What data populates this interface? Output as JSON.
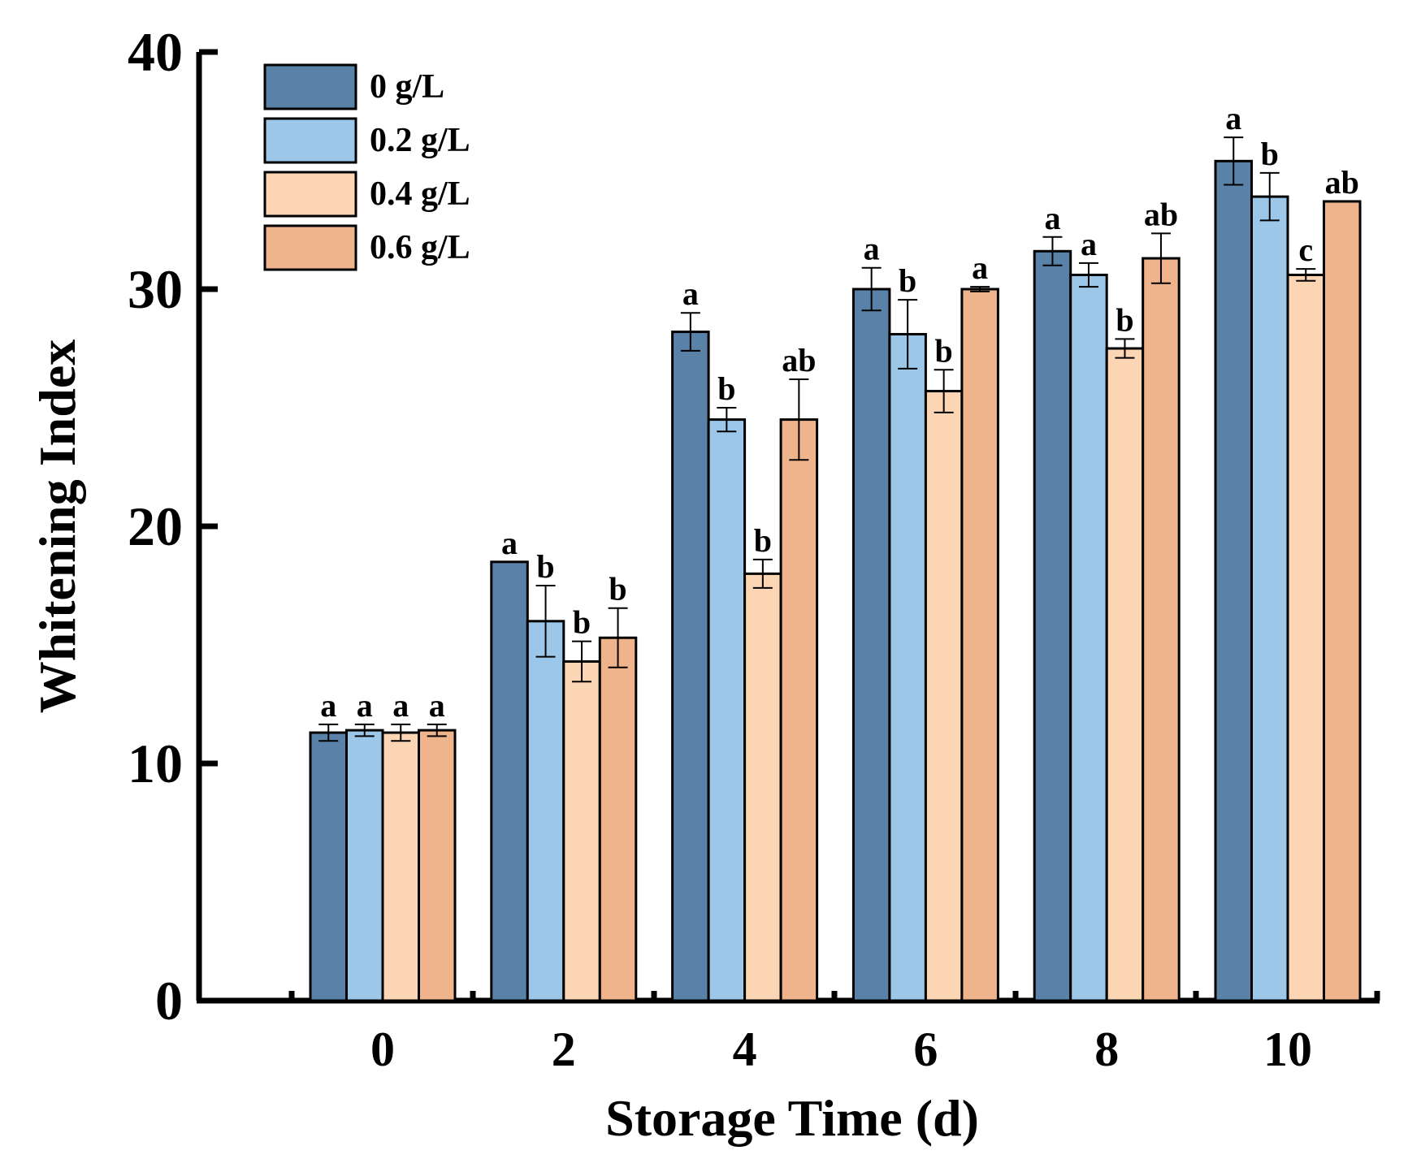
{
  "chart_data": {
    "type": "bar",
    "title": "",
    "xlabel": "Storage Time (d)",
    "ylabel": "Whitening Index",
    "ylim": [
      0,
      40
    ],
    "yticks": [
      0,
      10,
      20,
      30,
      40
    ],
    "categories": [
      "0",
      "2",
      "4",
      "6",
      "8",
      "10"
    ],
    "legend_position": "top-left",
    "series": [
      {
        "name": "0 g/L",
        "color": "#5a82a8",
        "values": [
          11.3,
          18.5,
          28.2,
          30.0,
          31.6,
          35.4
        ],
        "errors": [
          0.35,
          0.0,
          0.8,
          0.9,
          0.6,
          1.0
        ],
        "significance": [
          "a",
          "a",
          "a",
          "a",
          "a",
          "a"
        ]
      },
      {
        "name": "0.2 g/L",
        "color": "#9cc7e8",
        "values": [
          11.4,
          16.0,
          24.5,
          28.1,
          30.6,
          33.9
        ],
        "errors": [
          0.25,
          1.5,
          0.5,
          1.45,
          0.5,
          1.0
        ],
        "significance": [
          "a",
          "b",
          "b",
          "b",
          "a",
          "b"
        ]
      },
      {
        "name": "0.4 g/L",
        "color": "#fcd5b4",
        "values": [
          11.3,
          14.3,
          18.0,
          25.7,
          27.5,
          30.6
        ],
        "errors": [
          0.35,
          0.85,
          0.6,
          0.9,
          0.4,
          0.25
        ],
        "significance": [
          "a",
          "b",
          "b",
          "b",
          "b",
          "c"
        ]
      },
      {
        "name": "0.6 g/L",
        "color": "#f0b48c",
        "values": [
          11.4,
          15.3,
          24.5,
          30.0,
          31.3,
          33.7
        ],
        "errors": [
          0.25,
          1.25,
          1.7,
          0.1,
          1.05,
          0.0
        ],
        "significance": [
          "a",
          "b",
          "ab",
          "a",
          "ab",
          "ab"
        ]
      }
    ]
  }
}
